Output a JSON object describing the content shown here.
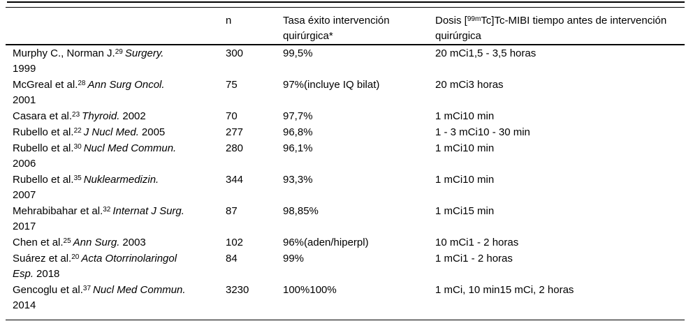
{
  "table": {
    "header": {
      "study": "",
      "n": "n",
      "tasa": "Tasa éxito intervención quirúrgica*",
      "dosis_prefix": "Dosis [",
      "dosis_sup": "99m",
      "dosis_suffix": "Tc]Tc-MIBI tiempo antes de intervención quirúrgica"
    },
    "rows": [
      {
        "authors": "Murphy C., Norman J.",
        "ref": "29",
        "journal": "Surgery.",
        "year": "1999",
        "n": "300",
        "tasa": "99,5%",
        "dosis": "20 mCi1,5 - 3,5 horas"
      },
      {
        "authors": "McGreal et al.",
        "ref": "28",
        "journal": "Ann Surg Oncol.",
        "year": "2001",
        "n": "75",
        "tasa": "97%(incluye IQ bilat)",
        "dosis": "20 mCi3 horas"
      },
      {
        "authors": "Casara et al.",
        "ref": "23",
        "journal": "Thyroid.",
        "year": "2002",
        "n": "70",
        "tasa": "97,7%",
        "dosis": "1 mCi10 min"
      },
      {
        "authors": "Rubello et al.",
        "ref": "22",
        "journal": "J Nucl Med.",
        "year": "2005",
        "n": "277",
        "tasa": "96,8%",
        "dosis": "1 - 3 mCi10 - 30 min"
      },
      {
        "authors": "Rubello et al.",
        "ref": "30",
        "journal": "Nucl Med Commun.",
        "year": "2006",
        "n": "280",
        "tasa": "96,1%",
        "dosis": "1 mCi10 min"
      },
      {
        "authors": "Rubello et al.",
        "ref": "35",
        "journal": "Nuklearmedizin.",
        "year": "2007",
        "n": "344",
        "tasa": "93,3%",
        "dosis": "1 mCi10 min"
      },
      {
        "authors": "Mehrabibahar et al.",
        "ref": "32",
        "journal": "Internat J Surg.",
        "year": "2017",
        "n": "87",
        "tasa": "98,85%",
        "dosis": "1 mCi15 min"
      },
      {
        "authors": "Chen et al.",
        "ref": "25",
        "journal": "Ann Surg.",
        "year": "2003",
        "n": "102",
        "tasa": "96%(aden/hiperpl)",
        "dosis": "10 mCi1 - 2 horas"
      },
      {
        "authors": "Suárez et al.",
        "ref": "20",
        "journal": "Acta Otorrinolaringol Esp.",
        "year": "2018",
        "n": "84",
        "tasa": "99%",
        "dosis": "1 mCi1 - 2 horas"
      },
      {
        "authors": "Gencoglu et al.",
        "ref": "37",
        "journal": "Nucl Med Commun.",
        "year": "2014",
        "n": "3230",
        "tasa": "100%100%",
        "dosis": "1 mCi, 10 min15 mCi, 2 horas"
      }
    ]
  }
}
